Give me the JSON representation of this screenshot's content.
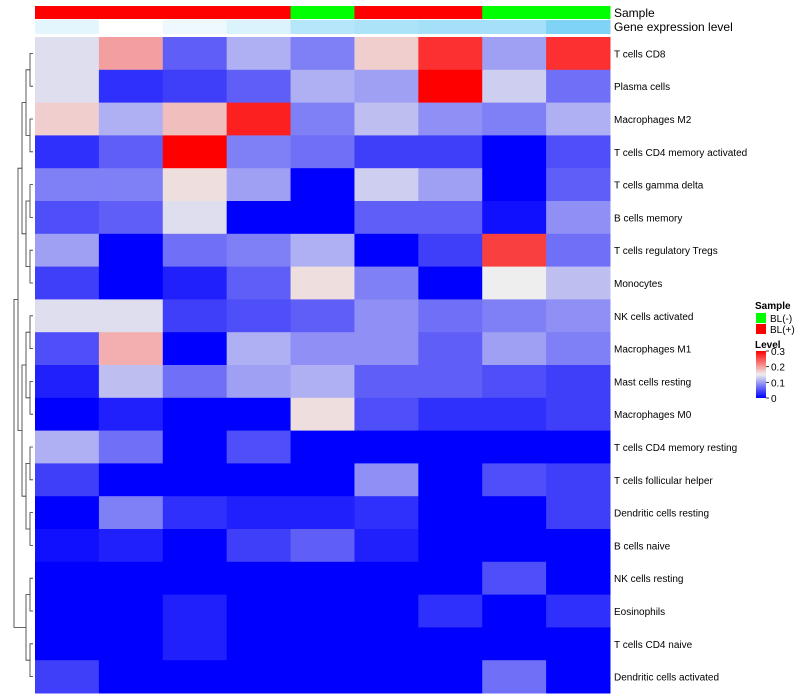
{
  "chart_data": {
    "type": "heatmap",
    "title": "",
    "annotation_labels": [
      "Sample",
      "Gene expression level"
    ],
    "sample_groups": [
      "BL(+)",
      "BL(+)",
      "BL(+)",
      "BL(+)",
      "BL(-)",
      "BL(+)",
      "BL(+)",
      "BL(-)",
      "BL(-)"
    ],
    "expression_level": [
      0.03,
      0.0,
      0.02,
      0.04,
      0.08,
      0.09,
      0.1,
      0.1,
      0.14
    ],
    "expression_level_colors": [
      "#ffffff",
      "#7fd4f5"
    ],
    "rows": [
      "T cells CD8",
      "Plasma cells",
      "Macrophages M2",
      "T cells CD4 memory activated",
      "T cells gamma delta",
      "B cells memory",
      "T cells regulatory  Tregs",
      "Monocytes",
      "NK cells activated",
      "Macrophages M1",
      "Mast cells resting",
      "Macrophages M0",
      "T cells CD4 memory resting",
      "T cells follicular helper",
      "Dendritic cells resting",
      "B cells naive",
      "NK cells resting",
      "Eosinophils",
      "T cells CD4 naive",
      "Dendritic cells activated"
    ],
    "values": [
      [
        0.14,
        0.2,
        0.06,
        0.11,
        0.08,
        0.17,
        0.27,
        0.1,
        0.27
      ],
      [
        0.14,
        0.03,
        0.04,
        0.06,
        0.11,
        0.1,
        0.3,
        0.13,
        0.07
      ],
      [
        0.17,
        0.11,
        0.18,
        0.28,
        0.08,
        0.12,
        0.09,
        0.08,
        0.11
      ],
      [
        0.03,
        0.06,
        0.3,
        0.08,
        0.07,
        0.04,
        0.04,
        0.0,
        0.05
      ],
      [
        0.08,
        0.08,
        0.16,
        0.1,
        0.0,
        0.13,
        0.1,
        0.0,
        0.06
      ],
      [
        0.05,
        0.06,
        0.14,
        0.0,
        0.0,
        0.06,
        0.06,
        0.01,
        0.09
      ],
      [
        0.1,
        0.0,
        0.07,
        0.08,
        0.11,
        0.0,
        0.04,
        0.26,
        0.07
      ],
      [
        0.04,
        0.0,
        0.02,
        0.06,
        0.16,
        0.08,
        0.0,
        0.15,
        0.12
      ],
      [
        0.14,
        0.14,
        0.04,
        0.05,
        0.06,
        0.09,
        0.07,
        0.08,
        0.09
      ],
      [
        0.05,
        0.19,
        0.0,
        0.11,
        0.09,
        0.09,
        0.06,
        0.1,
        0.08
      ],
      [
        0.02,
        0.12,
        0.07,
        0.1,
        0.11,
        0.06,
        0.06,
        0.05,
        0.04
      ],
      [
        0.0,
        0.02,
        0.0,
        0.0,
        0.16,
        0.05,
        0.03,
        0.03,
        0.04
      ],
      [
        0.11,
        0.07,
        0.0,
        0.05,
        0.0,
        0.0,
        0.0,
        0.0,
        0.0
      ],
      [
        0.04,
        0.0,
        0.0,
        0.0,
        0.0,
        0.09,
        0.0,
        0.05,
        0.04
      ],
      [
        0.0,
        0.08,
        0.03,
        0.02,
        0.02,
        0.03,
        0.0,
        0.0,
        0.04
      ],
      [
        0.01,
        0.02,
        0.0,
        0.04,
        0.06,
        0.02,
        0.0,
        0.0,
        0.0
      ],
      [
        0.0,
        0.0,
        0.0,
        0.0,
        0.0,
        0.0,
        0.0,
        0.05,
        0.0
      ],
      [
        0.0,
        0.0,
        0.02,
        0.0,
        0.0,
        0.0,
        0.03,
        0.0,
        0.03
      ],
      [
        0.0,
        0.0,
        0.02,
        0.0,
        0.0,
        0.0,
        0.0,
        0.0,
        0.0
      ],
      [
        0.04,
        0.0,
        0.0,
        0.0,
        0.0,
        0.0,
        0.0,
        0.07,
        0.0
      ]
    ],
    "color_scale": {
      "low": "#0000ff",
      "mid": "#eeeeee",
      "high": "#ff0000",
      "min": 0,
      "mid_value": 0.15,
      "max": 0.3
    },
    "legend": {
      "placement": "right",
      "sample_title": "Sample",
      "sample_entries": [
        {
          "label": "BL(-)",
          "color": "#00ff00"
        },
        {
          "label": "BL(+)",
          "color": "#ff0000"
        }
      ],
      "level_title": "Level",
      "level_ticks": [
        "0.3",
        "0.2",
        "0.1",
        "0"
      ],
      "level_tick_values": [
        0.3,
        0.2,
        0.1,
        0
      ]
    },
    "dendrogram": "rows",
    "grid": false
  }
}
